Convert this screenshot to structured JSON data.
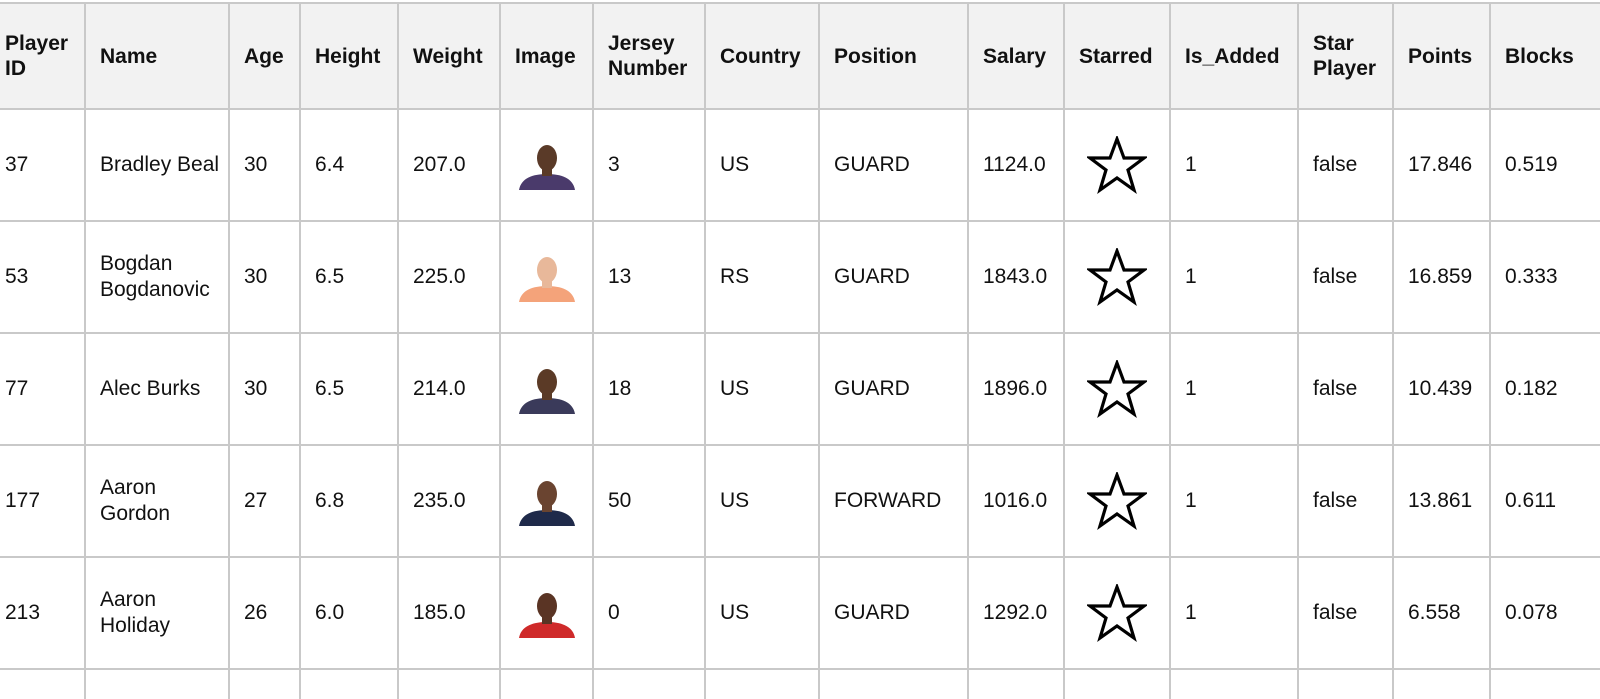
{
  "columns": [
    {
      "key": "player_id",
      "label": "Player ID"
    },
    {
      "key": "name",
      "label": "Name"
    },
    {
      "key": "age",
      "label": "Age"
    },
    {
      "key": "height",
      "label": "Height"
    },
    {
      "key": "weight",
      "label": "Weight"
    },
    {
      "key": "image",
      "label": "Image"
    },
    {
      "key": "jersey",
      "label": "Jersey Number"
    },
    {
      "key": "country",
      "label": "Country"
    },
    {
      "key": "position",
      "label": "Position"
    },
    {
      "key": "salary",
      "label": "Salary"
    },
    {
      "key": "starred",
      "label": "Starred"
    },
    {
      "key": "is_added",
      "label": "Is_Added"
    },
    {
      "key": "star_player",
      "label": "Star Player"
    },
    {
      "key": "points",
      "label": "Points"
    },
    {
      "key": "blocks",
      "label": "Blocks"
    }
  ],
  "rows": [
    {
      "player_id": "37",
      "name": "Bradley Beal",
      "age": "30",
      "height": "6.4",
      "weight": "207.0",
      "image_icon": "player-headshot",
      "jersey": "3",
      "country": "US",
      "position": "GUARD",
      "salary": "1124.0",
      "starred_icon": "star-outline-icon",
      "is_added": "1",
      "star_player": "false",
      "points": "17.846",
      "blocks": "0.519",
      "jersey_color": "#4a3a6b",
      "skin": "#5a3a28"
    },
    {
      "player_id": "53",
      "name": "Bogdan Bogdanovic",
      "age": "30",
      "height": "6.5",
      "weight": "225.0",
      "image_icon": "player-headshot",
      "jersey": "13",
      "country": "RS",
      "position": "GUARD",
      "salary": "1843.0",
      "starred_icon": "star-outline-icon",
      "is_added": "1",
      "star_player": "false",
      "points": "16.859",
      "blocks": "0.333",
      "jersey_color": "#f4a37a",
      "skin": "#e8b89a"
    },
    {
      "player_id": "77",
      "name": "Alec Burks",
      "age": "30",
      "height": "6.5",
      "weight": "214.0",
      "image_icon": "player-headshot",
      "jersey": "18",
      "country": "US",
      "position": "GUARD",
      "salary": "1896.0",
      "starred_icon": "star-outline-icon",
      "is_added": "1",
      "star_player": "false",
      "points": "10.439",
      "blocks": "0.182",
      "jersey_color": "#3a3a5a",
      "skin": "#5b3a26"
    },
    {
      "player_id": "177",
      "name": "Aaron Gordon",
      "age": "27",
      "height": "6.8",
      "weight": "235.0",
      "image_icon": "player-headshot",
      "jersey": "50",
      "country": "US",
      "position": "FORWARD",
      "salary": "1016.0",
      "starred_icon": "star-outline-icon",
      "is_added": "1",
      "star_player": "false",
      "points": "13.861",
      "blocks": "0.611",
      "jersey_color": "#1f2a4a",
      "skin": "#6a4430"
    },
    {
      "player_id": "213",
      "name": "Aaron Holiday",
      "age": "26",
      "height": "6.0",
      "weight": "185.0",
      "image_icon": "player-headshot",
      "jersey": "0",
      "country": "US",
      "position": "GUARD",
      "salary": "1292.0",
      "starred_icon": "star-outline-icon",
      "is_added": "1",
      "star_player": "false",
      "points": "6.558",
      "blocks": "0.078",
      "jersey_color": "#cf2a2a",
      "skin": "#5a3424"
    }
  ]
}
